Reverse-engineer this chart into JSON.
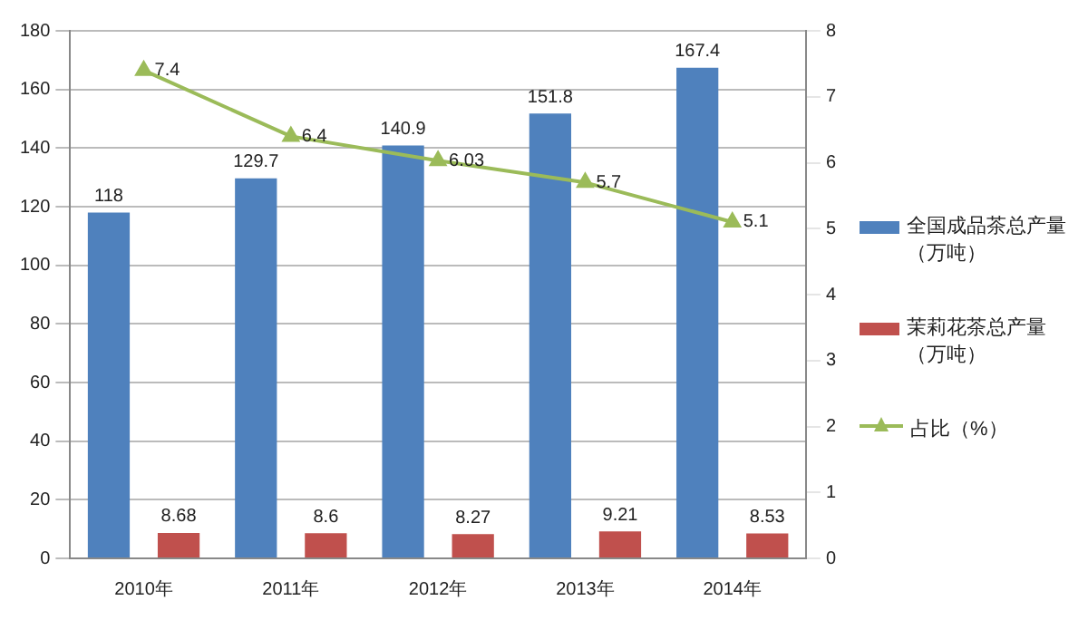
{
  "chart_data": {
    "type": "bar",
    "categories": [
      "2010年",
      "2011年",
      "2012年",
      "2013年",
      "2014年"
    ],
    "series": [
      {
        "name": "全国成品茶总产量（万吨）",
        "color": "#4f81bd",
        "values": [
          118,
          129.7,
          140.9,
          151.8,
          167.4
        ]
      },
      {
        "name": "茉莉花茶总产量（万吨）",
        "color": "#c0504d",
        "values": [
          8.68,
          8.6,
          8.27,
          9.21,
          8.53
        ]
      },
      {
        "name": "占比（%）",
        "type": "line",
        "axis": "y2",
        "color": "#9bbb59",
        "marker": "triangle",
        "values": [
          7.4,
          6.4,
          6.03,
          5.7,
          5.1
        ]
      }
    ],
    "ylim": [
      0,
      180
    ],
    "yticks": [
      0,
      20,
      40,
      60,
      80,
      100,
      120,
      140,
      160,
      180
    ],
    "y2lim": [
      0,
      8
    ],
    "y2ticks": [
      0,
      1,
      2,
      3,
      4,
      5,
      6,
      7,
      8
    ],
    "grid": "y",
    "legend": "right",
    "data_labels": true
  }
}
